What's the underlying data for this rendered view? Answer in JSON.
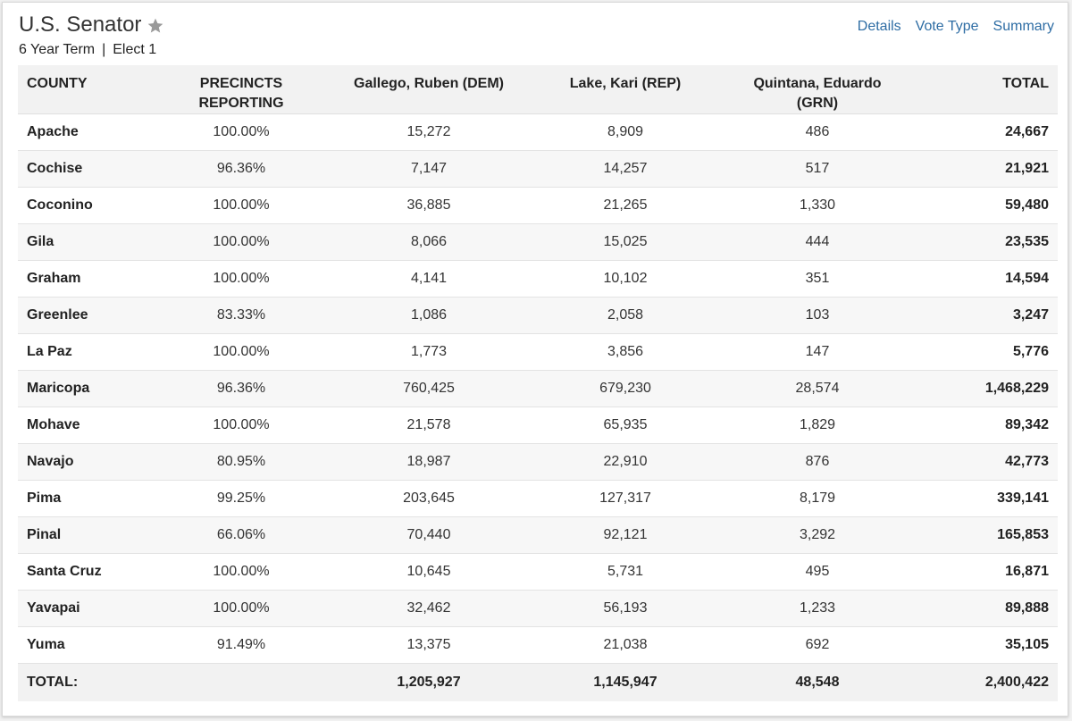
{
  "header": {
    "title": "U.S. Senator",
    "term": "6 Year Term",
    "separator": "|",
    "elect": "Elect 1"
  },
  "links": [
    "Details",
    "Vote Type",
    "Summary"
  ],
  "columns": {
    "county": "COUNTY",
    "precincts_line1": "PRECINCTS",
    "precincts_line2": "REPORTING",
    "dem": "Gallego, Ruben (DEM)",
    "rep": "Lake, Kari (REP)",
    "grn": "Quintana, Eduardo (GRN)",
    "total": "TOTAL"
  },
  "rows": [
    {
      "county": "Apache",
      "pct": "100.00%",
      "dem": "15,272",
      "rep": "8,909",
      "grn": "486",
      "total": "24,667"
    },
    {
      "county": "Cochise",
      "pct": "96.36%",
      "dem": "7,147",
      "rep": "14,257",
      "grn": "517",
      "total": "21,921"
    },
    {
      "county": "Coconino",
      "pct": "100.00%",
      "dem": "36,885",
      "rep": "21,265",
      "grn": "1,330",
      "total": "59,480"
    },
    {
      "county": "Gila",
      "pct": "100.00%",
      "dem": "8,066",
      "rep": "15,025",
      "grn": "444",
      "total": "23,535"
    },
    {
      "county": "Graham",
      "pct": "100.00%",
      "dem": "4,141",
      "rep": "10,102",
      "grn": "351",
      "total": "14,594"
    },
    {
      "county": "Greenlee",
      "pct": "83.33%",
      "dem": "1,086",
      "rep": "2,058",
      "grn": "103",
      "total": "3,247"
    },
    {
      "county": "La Paz",
      "pct": "100.00%",
      "dem": "1,773",
      "rep": "3,856",
      "grn": "147",
      "total": "5,776"
    },
    {
      "county": "Maricopa",
      "pct": "96.36%",
      "dem": "760,425",
      "rep": "679,230",
      "grn": "28,574",
      "total": "1,468,229"
    },
    {
      "county": "Mohave",
      "pct": "100.00%",
      "dem": "21,578",
      "rep": "65,935",
      "grn": "1,829",
      "total": "89,342"
    },
    {
      "county": "Navajo",
      "pct": "80.95%",
      "dem": "18,987",
      "rep": "22,910",
      "grn": "876",
      "total": "42,773"
    },
    {
      "county": "Pima",
      "pct": "99.25%",
      "dem": "203,645",
      "rep": "127,317",
      "grn": "8,179",
      "total": "339,141"
    },
    {
      "county": "Pinal",
      "pct": "66.06%",
      "dem": "70,440",
      "rep": "92,121",
      "grn": "3,292",
      "total": "165,853"
    },
    {
      "county": "Santa Cruz",
      "pct": "100.00%",
      "dem": "10,645",
      "rep": "5,731",
      "grn": "495",
      "total": "16,871"
    },
    {
      "county": "Yavapai",
      "pct": "100.00%",
      "dem": "32,462",
      "rep": "56,193",
      "grn": "1,233",
      "total": "89,888"
    },
    {
      "county": "Yuma",
      "pct": "91.49%",
      "dem": "13,375",
      "rep": "21,038",
      "grn": "692",
      "total": "35,105"
    }
  ],
  "totals": {
    "label": "TOTAL:",
    "pct": "",
    "dem": "1,205,927",
    "rep": "1,145,947",
    "grn": "48,548",
    "total": "2,400,422"
  },
  "colors": {
    "link": "#2e6da4",
    "star": "#9a9a9a"
  }
}
